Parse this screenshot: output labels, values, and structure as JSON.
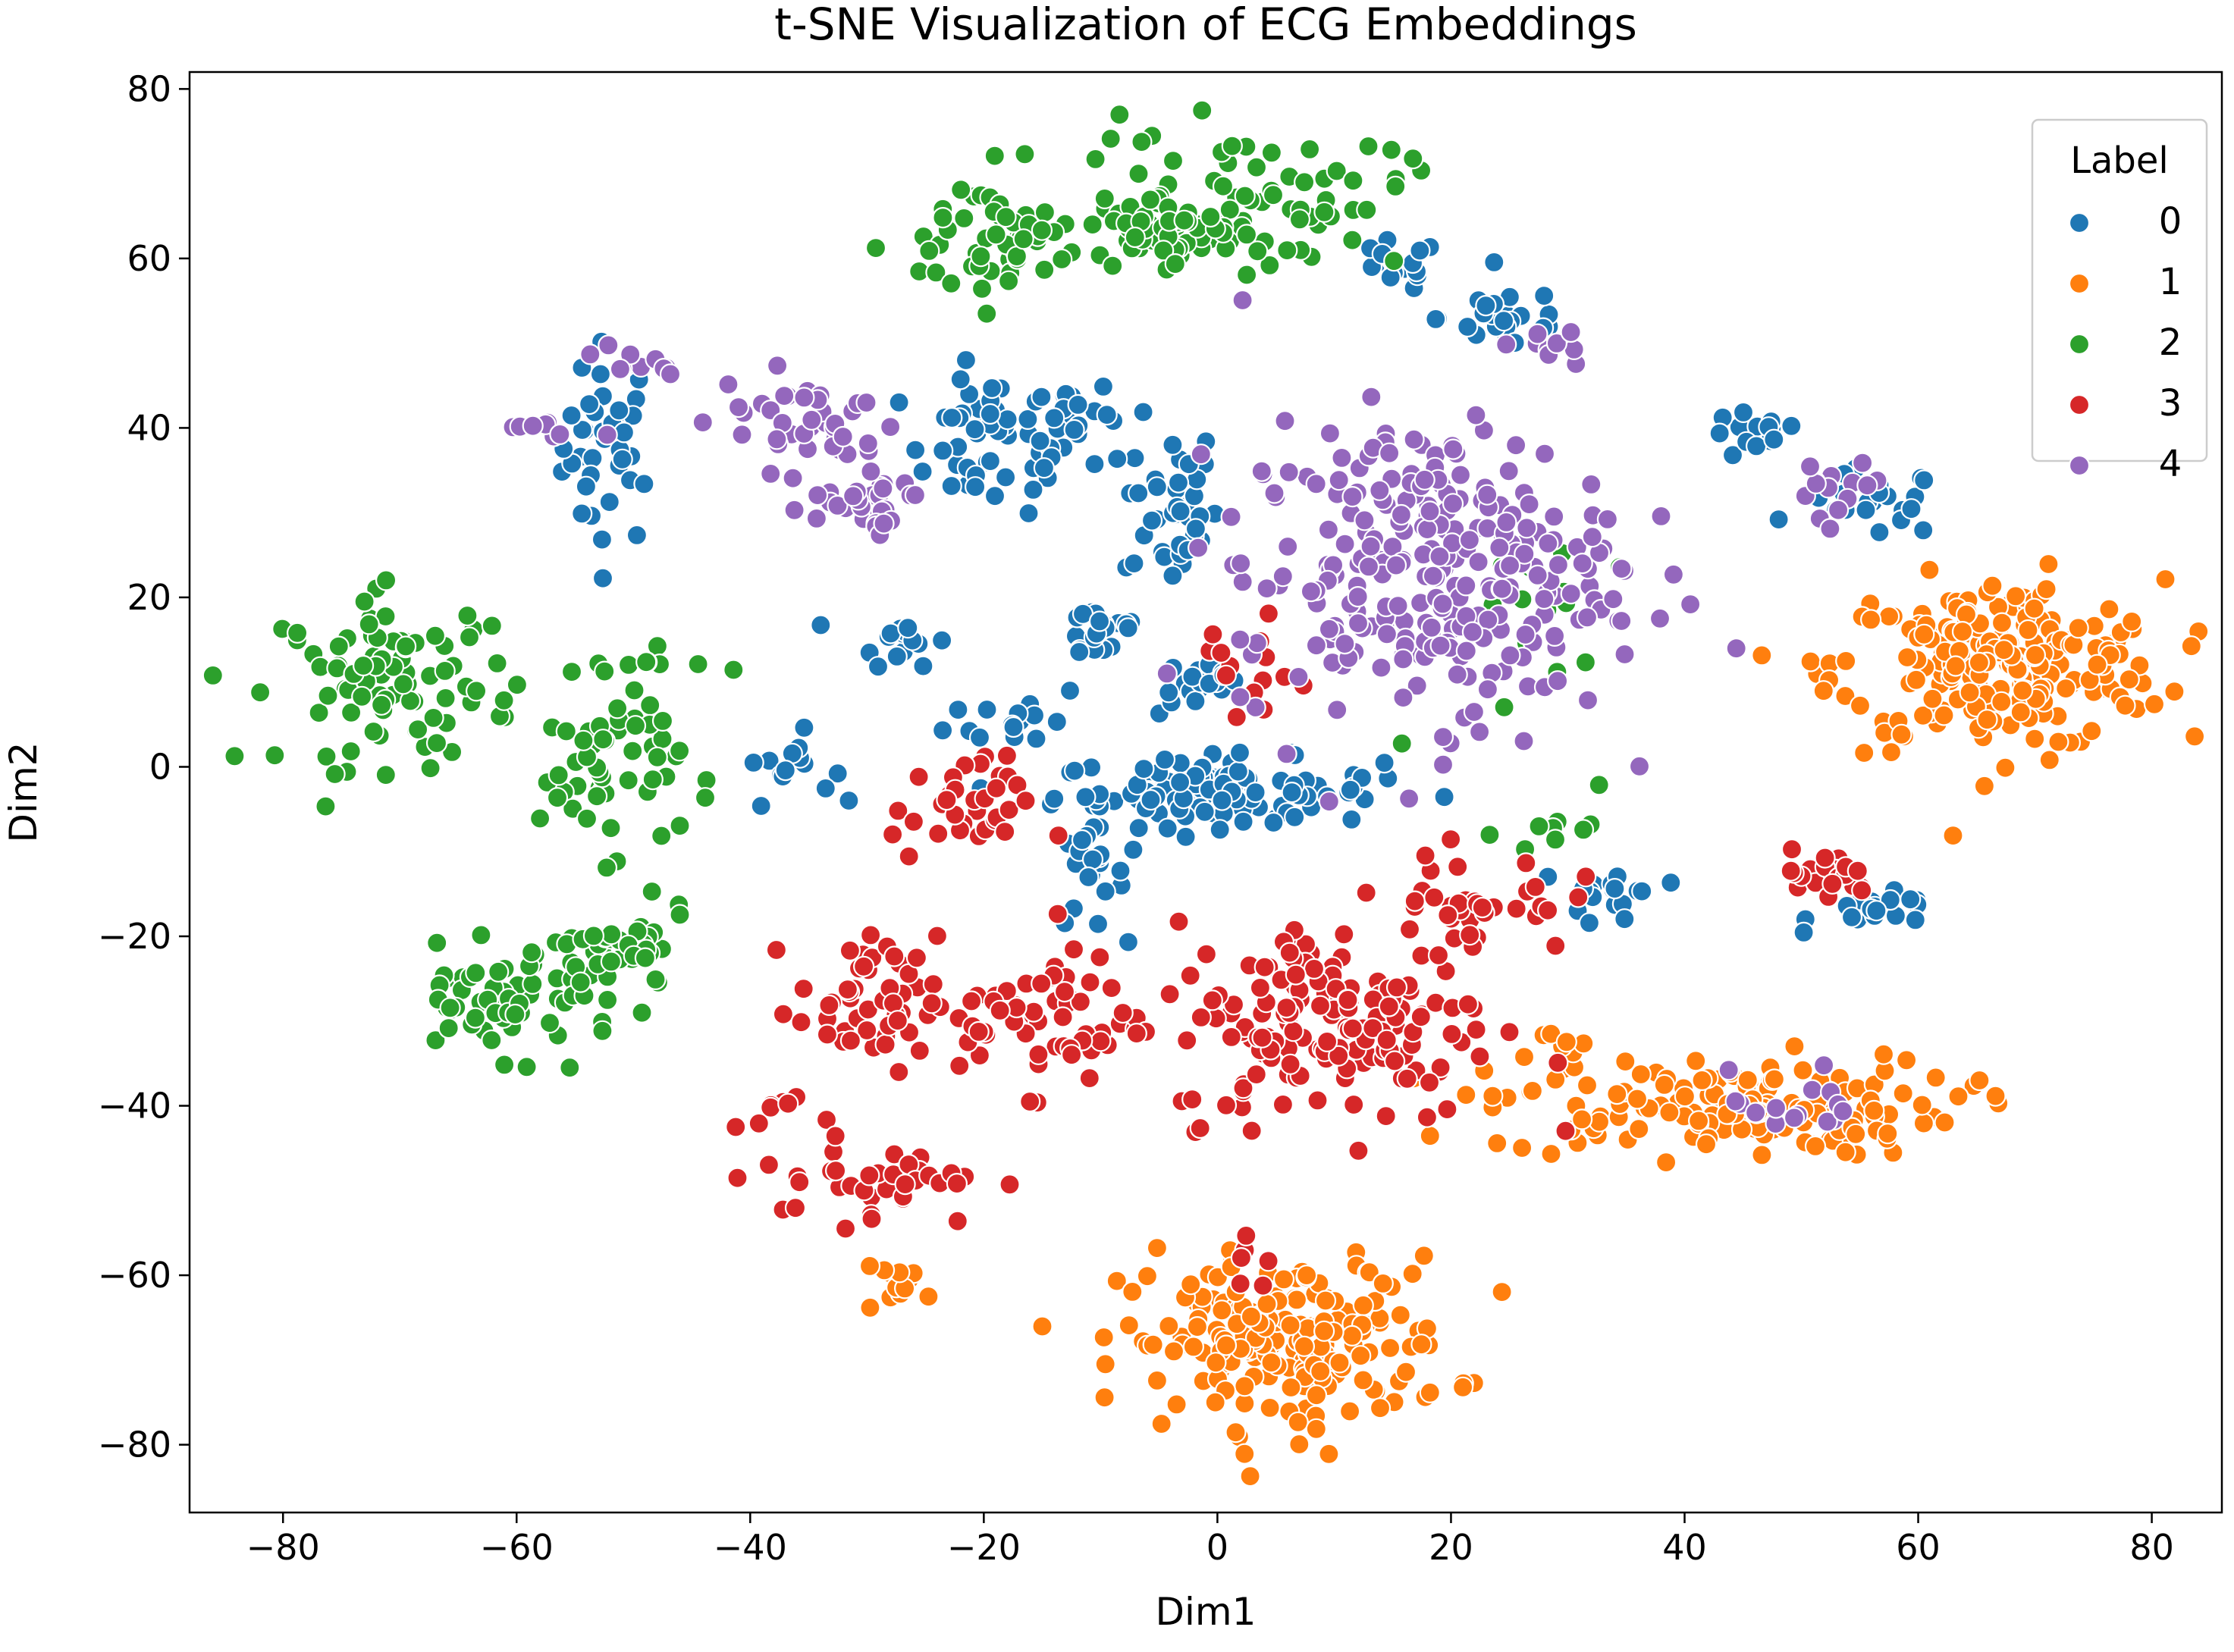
{
  "chart_data": {
    "type": "scatter",
    "title": "t-SNE Visualization of ECG Embeddings",
    "xlabel": "Dim1",
    "ylabel": "Dim2",
    "xlim": [
      -88,
      86
    ],
    "ylim": [
      -88,
      82
    ],
    "x_ticks": [
      -80,
      -60,
      -40,
      -20,
      0,
      20,
      40,
      60,
      80
    ],
    "y_ticks": [
      -80,
      -60,
      -40,
      -20,
      0,
      20,
      40,
      60,
      80
    ],
    "x_tick_labels": [
      "−80",
      "−60",
      "−40",
      "−20",
      "0",
      "20",
      "40",
      "60",
      "80"
    ],
    "y_tick_labels": [
      "−80",
      "−60",
      "−40",
      "−20",
      "0",
      "20",
      "40",
      "60",
      "80"
    ],
    "grid": false,
    "legend": {
      "title": "Label",
      "placement": "top-right",
      "entries": [
        {
          "label": "0",
          "color": "#1f77b4"
        },
        {
          "label": "1",
          "color": "#ff7f0e"
        },
        {
          "label": "2",
          "color": "#2ca02c"
        },
        {
          "label": "3",
          "color": "#d62728"
        },
        {
          "label": "4",
          "color": "#9467bd"
        }
      ]
    },
    "series": [
      {
        "name": "0",
        "color": "#1f77b4",
        "clusters": [
          {
            "c": [
              -52,
              38
            ],
            "s": [
              2,
              6
            ],
            "n": 40
          },
          {
            "c": [
              -19,
              38
            ],
            "s": [
              4,
              4
            ],
            "n": 55
          },
          {
            "c": [
              -4,
              31
            ],
            "s": [
              2,
              5
            ],
            "n": 40
          },
          {
            "c": [
              -10,
              16
            ],
            "s": [
              2,
              2
            ],
            "n": 20
          },
          {
            "c": [
              -17,
              6
            ],
            "s": [
              3,
              2
            ],
            "n": 15
          },
          {
            "c": [
              -27,
              15
            ],
            "s": [
              2,
              1.5
            ],
            "n": 15
          },
          {
            "c": [
              -37,
              0
            ],
            "s": [
              2,
              2
            ],
            "n": 14
          },
          {
            "c": [
              0,
              -3
            ],
            "s": [
              7,
              2
            ],
            "n": 110
          },
          {
            "c": [
              -11,
              -13
            ],
            "s": [
              1.5,
              3
            ],
            "n": 20
          },
          {
            "c": [
              -1,
              10
            ],
            "s": [
              2,
              2
            ],
            "n": 25
          },
          {
            "c": [
              25,
              53
            ],
            "s": [
              3,
              2
            ],
            "n": 25
          },
          {
            "c": [
              15,
              59
            ],
            "s": [
              2,
              1.5
            ],
            "n": 15
          },
          {
            "c": [
              46,
              39
            ],
            "s": [
              2,
              1.5
            ],
            "n": 14
          },
          {
            "c": [
              56,
              31
            ],
            "s": [
              3,
              2
            ],
            "n": 22
          },
          {
            "c": [
              57,
              -17
            ],
            "s": [
              3,
              1
            ],
            "n": 20
          },
          {
            "c": [
              34,
              -15
            ],
            "s": [
              2,
              2
            ],
            "n": 18
          },
          {
            "c": [
              -12,
              42
            ],
            "s": [
              2,
              1.5
            ],
            "n": 12
          }
        ]
      },
      {
        "name": "1",
        "color": "#ff7f0e",
        "clusters": [
          {
            "c": [
              67,
              12
            ],
            "s": [
              7,
              5
            ],
            "n": 220
          },
          {
            "c": [
              43,
              -40
            ],
            "s": [
              10,
              3
            ],
            "n": 150
          },
          {
            "c": [
              6,
              -68
            ],
            "s": [
              7,
              5
            ],
            "n": 200
          },
          {
            "c": [
              -27,
              -61
            ],
            "s": [
              2,
              1
            ],
            "n": 12
          },
          {
            "c": [
              30,
              -33
            ],
            "s": [
              1.5,
              1
            ],
            "n": 6
          }
        ]
      },
      {
        "name": "2",
        "color": "#2ca02c",
        "clusters": [
          {
            "c": [
              -70,
              10
            ],
            "s": [
              5,
              5
            ],
            "n": 90
          },
          {
            "c": [
              -52,
              0
            ],
            "s": [
              3,
              5
            ],
            "n": 50
          },
          {
            "c": [
              -61,
              -28
            ],
            "s": [
              5,
              3
            ],
            "n": 60
          },
          {
            "c": [
              -51,
              -22
            ],
            "s": [
              3,
              2.5
            ],
            "n": 40
          },
          {
            "c": [
              -18,
              62
            ],
            "s": [
              5,
              4
            ],
            "n": 60
          },
          {
            "c": [
              2,
              67
            ],
            "s": [
              7,
              4
            ],
            "n": 80
          },
          {
            "c": [
              -4,
              64
            ],
            "s": [
              3,
              2
            ],
            "n": 30
          },
          {
            "c": [
              26,
              15
            ],
            "s": [
              4,
              8
            ],
            "n": 15
          },
          {
            "c": [
              28,
              -8
            ],
            "s": [
              2,
              1
            ],
            "n": 8
          },
          {
            "c": [
              -50,
              12
            ],
            "s": [
              3,
              2
            ],
            "n": 10
          }
        ]
      },
      {
        "name": "3",
        "color": "#d62728",
        "clusters": [
          {
            "c": [
              -22,
              -5
            ],
            "s": [
              3,
              3
            ],
            "n": 35
          },
          {
            "c": [
              -30,
              -28
            ],
            "s": [
              3,
              4
            ],
            "n": 50
          },
          {
            "c": [
              -29,
              -48
            ],
            "s": [
              5,
              3
            ],
            "n": 40
          },
          {
            "c": [
              -14,
              -30
            ],
            "s": [
              4,
              4
            ],
            "n": 60
          },
          {
            "c": [
              10,
              -30
            ],
            "s": [
              7,
              6
            ],
            "n": 160
          },
          {
            "c": [
              22,
              -16
            ],
            "s": [
              4,
              3
            ],
            "n": 40
          },
          {
            "c": [
              52,
              -13
            ],
            "s": [
              2,
              1.5
            ],
            "n": 20
          },
          {
            "c": [
              2,
              12
            ],
            "s": [
              4,
              4
            ],
            "n": 14
          },
          {
            "c": [
              -38,
              -40
            ],
            "s": [
              1.5,
              2
            ],
            "n": 6
          },
          {
            "c": [
              3,
              -58
            ],
            "s": [
              3,
              2
            ],
            "n": 6
          }
        ]
      },
      {
        "name": "4",
        "color": "#9467bd",
        "clusters": [
          {
            "c": [
              18,
              23
            ],
            "s": [
              8,
              9
            ],
            "n": 280
          },
          {
            "c": [
              -35,
              41
            ],
            "s": [
              4,
              3
            ],
            "n": 40
          },
          {
            "c": [
              -31,
              31
            ],
            "s": [
              3,
              2
            ],
            "n": 30
          },
          {
            "c": [
              -50,
              48
            ],
            "s": [
              2,
              1
            ],
            "n": 10
          },
          {
            "c": [
              52,
              30
            ],
            "s": [
              3,
              3
            ],
            "n": 14
          },
          {
            "c": [
              -57,
              40
            ],
            "s": [
              2,
              1
            ],
            "n": 8
          },
          {
            "c": [
              50,
              -40
            ],
            "s": [
              3,
              2
            ],
            "n": 15
          },
          {
            "c": [
              28,
              50
            ],
            "s": [
              2,
              1.5
            ],
            "n": 8
          }
        ]
      }
    ]
  }
}
